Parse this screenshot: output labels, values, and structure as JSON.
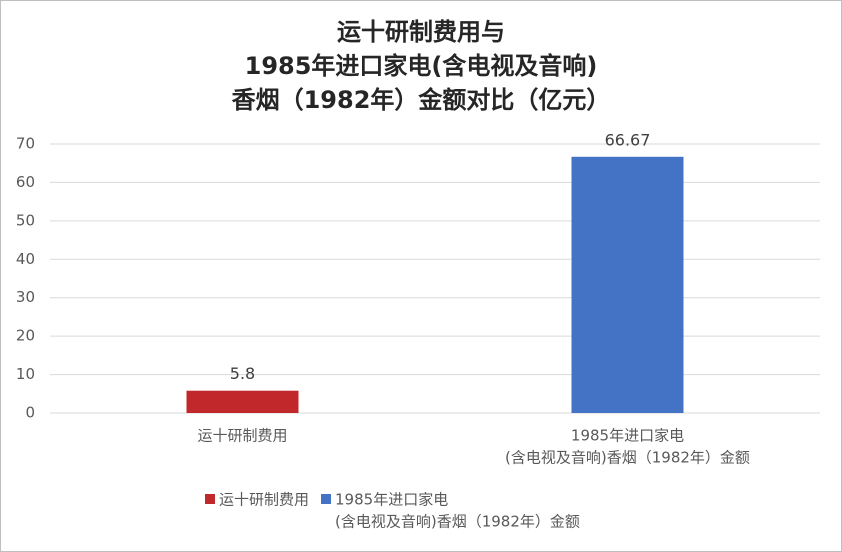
{
  "chart_data": {
    "type": "bar",
    "title": [
      "运十研制费用与",
      "1985年进口家电(含电视及音响)",
      "香烟（1982年）金额对比（亿元）"
    ],
    "categories": [
      [
        "运十研制费用"
      ],
      [
        "1985年进口家电",
        "(含电视及音响)香烟（1982年）金额"
      ]
    ],
    "values": [
      5.8,
      66.67
    ],
    "colors": [
      "#c0282b",
      "#4472c4"
    ],
    "ylim": [
      0,
      70
    ],
    "yticks": [
      0,
      10,
      20,
      30,
      40,
      50,
      60,
      70
    ],
    "grid": true
  }
}
